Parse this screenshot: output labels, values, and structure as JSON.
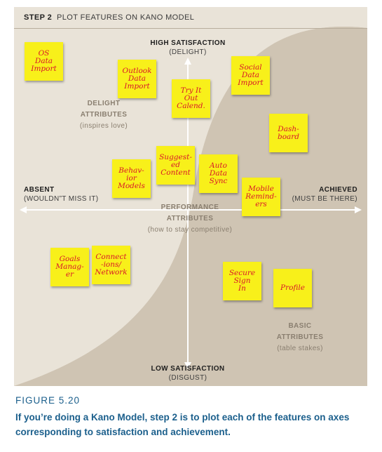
{
  "header": {
    "step": "STEP 2",
    "title": "PLOT FEATURES ON KANO MODEL"
  },
  "axes": {
    "top": {
      "main": "HIGH SATISFACTION",
      "sub": "(DELIGHT)"
    },
    "bottom": {
      "main": "LOW SATISFACTION",
      "sub": "(DISGUST)"
    },
    "left": {
      "main": "ABSENT",
      "sub": "(WOULDN”T MISS IT)"
    },
    "right": {
      "main": "ACHIEVED",
      "sub": "(MUST BE THERE)"
    }
  },
  "regions": {
    "delight": {
      "title1": "DELIGHT",
      "title2": "ATTRIBUTES",
      "note": "(inspires love)"
    },
    "performance": {
      "title1": "PERFORMANCE",
      "title2": "ATTRIBUTES",
      "note": "(how to stay competitive)"
    },
    "basic": {
      "title1": "BASIC",
      "title2": "ATTRIBUTES",
      "note": "(table stakes)"
    }
  },
  "notes": [
    {
      "text": "OS\nData\nImport"
    },
    {
      "text": "Outlook\nData\nImport"
    },
    {
      "text": "Try It\nOut\nCalend."
    },
    {
      "text": "Social\nData\nImport"
    },
    {
      "text": "Dash-\nboard"
    },
    {
      "text": "Suggest-\ned\nContent"
    },
    {
      "text": "Auto\nData\nSync"
    },
    {
      "text": "Behav-\nior\nModels"
    },
    {
      "text": "Mobile\nRemind-\ners"
    },
    {
      "text": "Goals\nManag-\ner"
    },
    {
      "text": "Connect\n-ions/\nNetwork"
    },
    {
      "text": "Secure\nSign\nIn"
    },
    {
      "text": "Profile"
    }
  ],
  "caption": {
    "title": "FIGURE 5.20",
    "text": "If you’re doing a Kano Model, step 2 is to plot each of the features on axes corresponding to satisfaction and achievement."
  },
  "colors": {
    "background": "#cfc4b3",
    "curve_band": "#e9e3d8",
    "note": "#f8f01a",
    "note_text": "#d8172a",
    "caption": "#1b5f8c"
  }
}
